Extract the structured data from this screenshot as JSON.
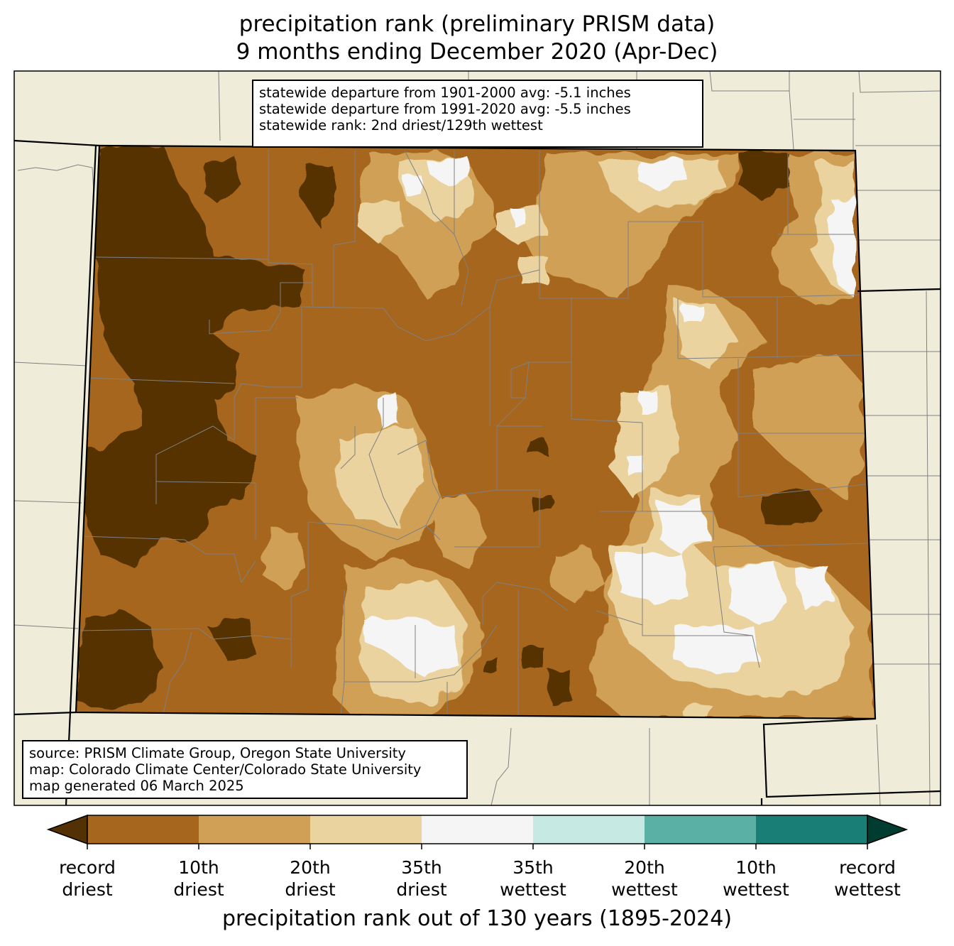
{
  "title_line1": "precipitation rank (preliminary PRISM data)",
  "title_line2": "9 months ending December 2020 (Apr-Dec)",
  "stats": {
    "line1": "statewide departure from 1901-2000 avg: -5.1 inches",
    "line2": "statewide departure from 1991-2020 avg: -5.5 inches",
    "line3": "statewide rank: 2nd driest/129th wettest"
  },
  "credits": {
    "line1": "source: PRISM Climate Group, Oregon State University",
    "line2": "map: Colorado Climate Center/Colorado State University",
    "line3": "map generated 06 March 2025"
  },
  "colorbar": {
    "title": "precipitation rank out of 130 years (1895-2024)",
    "colors": {
      "under": "#543005",
      "bins": [
        "#a6661e",
        "#cfa055",
        "#ead39f",
        "#f4f5f4",
        "#c6eae3",
        "#5bb0a6",
        "#197e75"
      ],
      "over": "#003c30"
    },
    "ticks": [
      {
        "line1": "record",
        "line2": "driest"
      },
      {
        "line1": "10th",
        "line2": "driest"
      },
      {
        "line1": "20th",
        "line2": "driest"
      },
      {
        "line1": "35th",
        "line2": "driest"
      },
      {
        "line1": "35th",
        "line2": "wettest"
      },
      {
        "line1": "20th",
        "line2": "wettest"
      },
      {
        "line1": "10th",
        "line2": "wettest"
      },
      {
        "line1": "record",
        "line2": "wettest"
      }
    ]
  },
  "map_colors": {
    "land_outside": "#efedda",
    "record_driest": "#543005",
    "driest_10": "#a6661e",
    "driest_20": "#cfa055",
    "driest_35": "#ead39f",
    "near_normal": "#f4f5f4",
    "county_lines": "#808080",
    "state_lines": "#000000"
  }
}
